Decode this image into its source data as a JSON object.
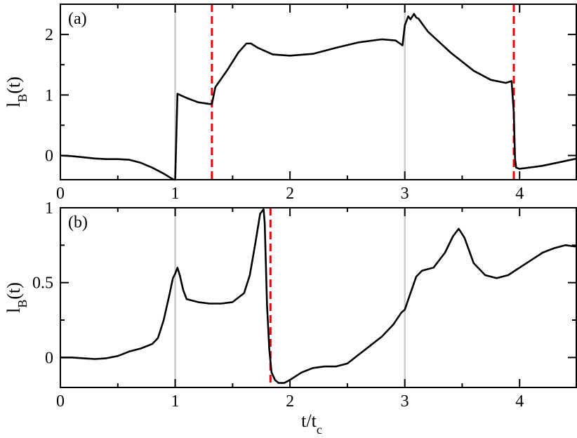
{
  "chart_data": [
    {
      "type": "line",
      "panel_label": "(a)",
      "ylabel": {
        "main": "l",
        "sub": "B",
        "suffix": "(t)"
      },
      "xlim": [
        0,
        4.5
      ],
      "ylim": [
        -0.4,
        2.5
      ],
      "xticks": [
        {
          "value": 0,
          "label": "0"
        },
        {
          "value": 1,
          "label": "1"
        },
        {
          "value": 2,
          "label": "2"
        },
        {
          "value": 3,
          "label": "3"
        },
        {
          "value": 4,
          "label": "4"
        }
      ],
      "yticks": [
        {
          "value": 0,
          "label": "0"
        },
        {
          "value": 1,
          "label": "1"
        },
        {
          "value": 2,
          "label": "2"
        }
      ],
      "vlines": [
        {
          "x": 1.0,
          "style": "solid",
          "color": "#cccccc"
        },
        {
          "x": 3.0,
          "style": "solid",
          "color": "#cccccc"
        },
        {
          "x": 1.32,
          "style": "dashed",
          "color": "#e8000b"
        },
        {
          "x": 3.95,
          "style": "dashed",
          "color": "#e8000b"
        }
      ],
      "series": [
        {
          "color": "#000000",
          "x": [
            0.0,
            0.1,
            0.2,
            0.3,
            0.4,
            0.5,
            0.6,
            0.7,
            0.8,
            0.9,
            0.97,
            0.99,
            1.0,
            1.02,
            1.1,
            1.2,
            1.3,
            1.31,
            1.32,
            1.35,
            1.45,
            1.55,
            1.62,
            1.66,
            1.72,
            1.85,
            2.0,
            2.2,
            2.4,
            2.6,
            2.8,
            2.92,
            2.98,
            3.0,
            3.03,
            3.05,
            3.08,
            3.1,
            3.12,
            3.2,
            3.4,
            3.6,
            3.75,
            3.88,
            3.93,
            3.95,
            3.96,
            3.97,
            4.0,
            4.2,
            4.4,
            4.5
          ],
          "y": [
            0.0,
            -0.01,
            -0.03,
            -0.05,
            -0.06,
            -0.06,
            -0.07,
            -0.12,
            -0.2,
            -0.3,
            -0.38,
            -0.4,
            -0.4,
            1.02,
            0.95,
            0.88,
            0.85,
            0.85,
            0.85,
            1.13,
            1.4,
            1.7,
            1.85,
            1.85,
            1.78,
            1.67,
            1.65,
            1.68,
            1.78,
            1.87,
            1.92,
            1.9,
            1.82,
            2.15,
            2.3,
            2.25,
            2.34,
            2.28,
            2.26,
            2.05,
            1.7,
            1.4,
            1.25,
            1.2,
            1.23,
            0.7,
            -0.05,
            -0.2,
            -0.22,
            -0.17,
            -0.09,
            -0.05
          ]
        }
      ]
    },
    {
      "type": "line",
      "panel_label": "(b)",
      "xlabel": {
        "main": "t/t",
        "sub": "c"
      },
      "ylabel": {
        "main": "l",
        "sub": "B",
        "suffix": "(t)"
      },
      "xlim": [
        0,
        4.5
      ],
      "ylim": [
        -0.2,
        1.0
      ],
      "xticks": [
        {
          "value": 0,
          "label": "0"
        },
        {
          "value": 1,
          "label": "1"
        },
        {
          "value": 2,
          "label": "2"
        },
        {
          "value": 3,
          "label": "3"
        },
        {
          "value": 4,
          "label": "4"
        }
      ],
      "yticks": [
        {
          "value": 0,
          "label": "0"
        },
        {
          "value": 0.5,
          "label": "0.5"
        },
        {
          "value": 1,
          "label": "1"
        }
      ],
      "vlines": [
        {
          "x": 1.0,
          "style": "solid",
          "color": "#cccccc"
        },
        {
          "x": 3.0,
          "style": "solid",
          "color": "#cccccc"
        },
        {
          "x": 1.83,
          "style": "dashed",
          "color": "#e8000b"
        }
      ],
      "series": [
        {
          "color": "#000000",
          "x": [
            0.0,
            0.1,
            0.2,
            0.3,
            0.4,
            0.5,
            0.6,
            0.7,
            0.8,
            0.85,
            0.9,
            0.95,
            0.98,
            1.0,
            1.02,
            1.04,
            1.07,
            1.1,
            1.2,
            1.3,
            1.4,
            1.5,
            1.6,
            1.65,
            1.7,
            1.74,
            1.77,
            1.78,
            1.8,
            1.82,
            1.84,
            1.87,
            1.9,
            1.95,
            2.0,
            2.1,
            2.2,
            2.3,
            2.4,
            2.5,
            2.6,
            2.7,
            2.8,
            2.9,
            2.97,
            3.0,
            3.05,
            3.1,
            3.15,
            3.25,
            3.35,
            3.42,
            3.47,
            3.52,
            3.6,
            3.7,
            3.8,
            3.9,
            4.0,
            4.1,
            4.2,
            4.3,
            4.4,
            4.5
          ],
          "y": [
            0.0,
            0.0,
            -0.005,
            -0.01,
            -0.005,
            0.01,
            0.04,
            0.06,
            0.09,
            0.13,
            0.25,
            0.42,
            0.53,
            0.56,
            0.6,
            0.55,
            0.45,
            0.39,
            0.37,
            0.36,
            0.36,
            0.37,
            0.43,
            0.55,
            0.77,
            0.96,
            0.99,
            0.9,
            0.35,
            0.05,
            -0.1,
            -0.15,
            -0.17,
            -0.17,
            -0.15,
            -0.1,
            -0.07,
            -0.06,
            -0.06,
            -0.04,
            0.02,
            0.08,
            0.14,
            0.22,
            0.3,
            0.32,
            0.43,
            0.54,
            0.58,
            0.6,
            0.7,
            0.81,
            0.86,
            0.8,
            0.63,
            0.55,
            0.53,
            0.55,
            0.6,
            0.65,
            0.7,
            0.73,
            0.75,
            0.74
          ]
        }
      ]
    }
  ]
}
